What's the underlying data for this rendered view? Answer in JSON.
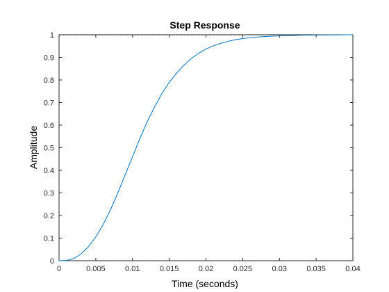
{
  "chart_data": {
    "type": "line",
    "title": "Step Response",
    "xlabel": "Time (seconds)",
    "ylabel": "Amplitude",
    "xlim": [
      0,
      0.04
    ],
    "ylim": [
      0,
      1
    ],
    "grid": false,
    "x_ticks": [
      "0",
      "0.005",
      "0.01",
      "0.015",
      "0.02",
      "0.025",
      "0.03",
      "0.035",
      "0.04"
    ],
    "y_ticks": [
      "0",
      "0.1",
      "0.2",
      "0.3",
      "0.4",
      "0.5",
      "0.6",
      "0.7",
      "0.8",
      "0.9",
      "1"
    ],
    "reference_line": {
      "y": 1,
      "style": "dotted",
      "color": "#000000"
    },
    "series": [
      {
        "color": "#0072BD",
        "x": [
          0,
          0.001,
          0.002,
          0.003,
          0.004,
          0.005,
          0.006,
          0.007,
          0.008,
          0.009,
          0.01,
          0.011,
          0.012,
          0.013,
          0.014,
          0.015,
          0.016,
          0.017,
          0.018,
          0.019,
          0.02,
          0.021,
          0.022,
          0.023,
          0.024,
          0.025,
          0.026,
          0.027,
          0.028,
          0.029,
          0.03,
          0.031,
          0.032,
          0.033,
          0.034,
          0.035,
          0.036,
          0.037,
          0.038,
          0.039,
          0.04
        ],
        "y": [
          0,
          0.001,
          0.01,
          0.03,
          0.062,
          0.105,
          0.16,
          0.225,
          0.3,
          0.38,
          0.46,
          0.54,
          0.615,
          0.68,
          0.74,
          0.79,
          0.83,
          0.865,
          0.895,
          0.918,
          0.937,
          0.951,
          0.962,
          0.971,
          0.978,
          0.983,
          0.987,
          0.99,
          0.992,
          0.994,
          0.995,
          0.996,
          0.997,
          0.998,
          0.9985,
          0.999,
          0.9993,
          0.9995,
          0.9997,
          0.9998,
          1
        ]
      }
    ]
  }
}
